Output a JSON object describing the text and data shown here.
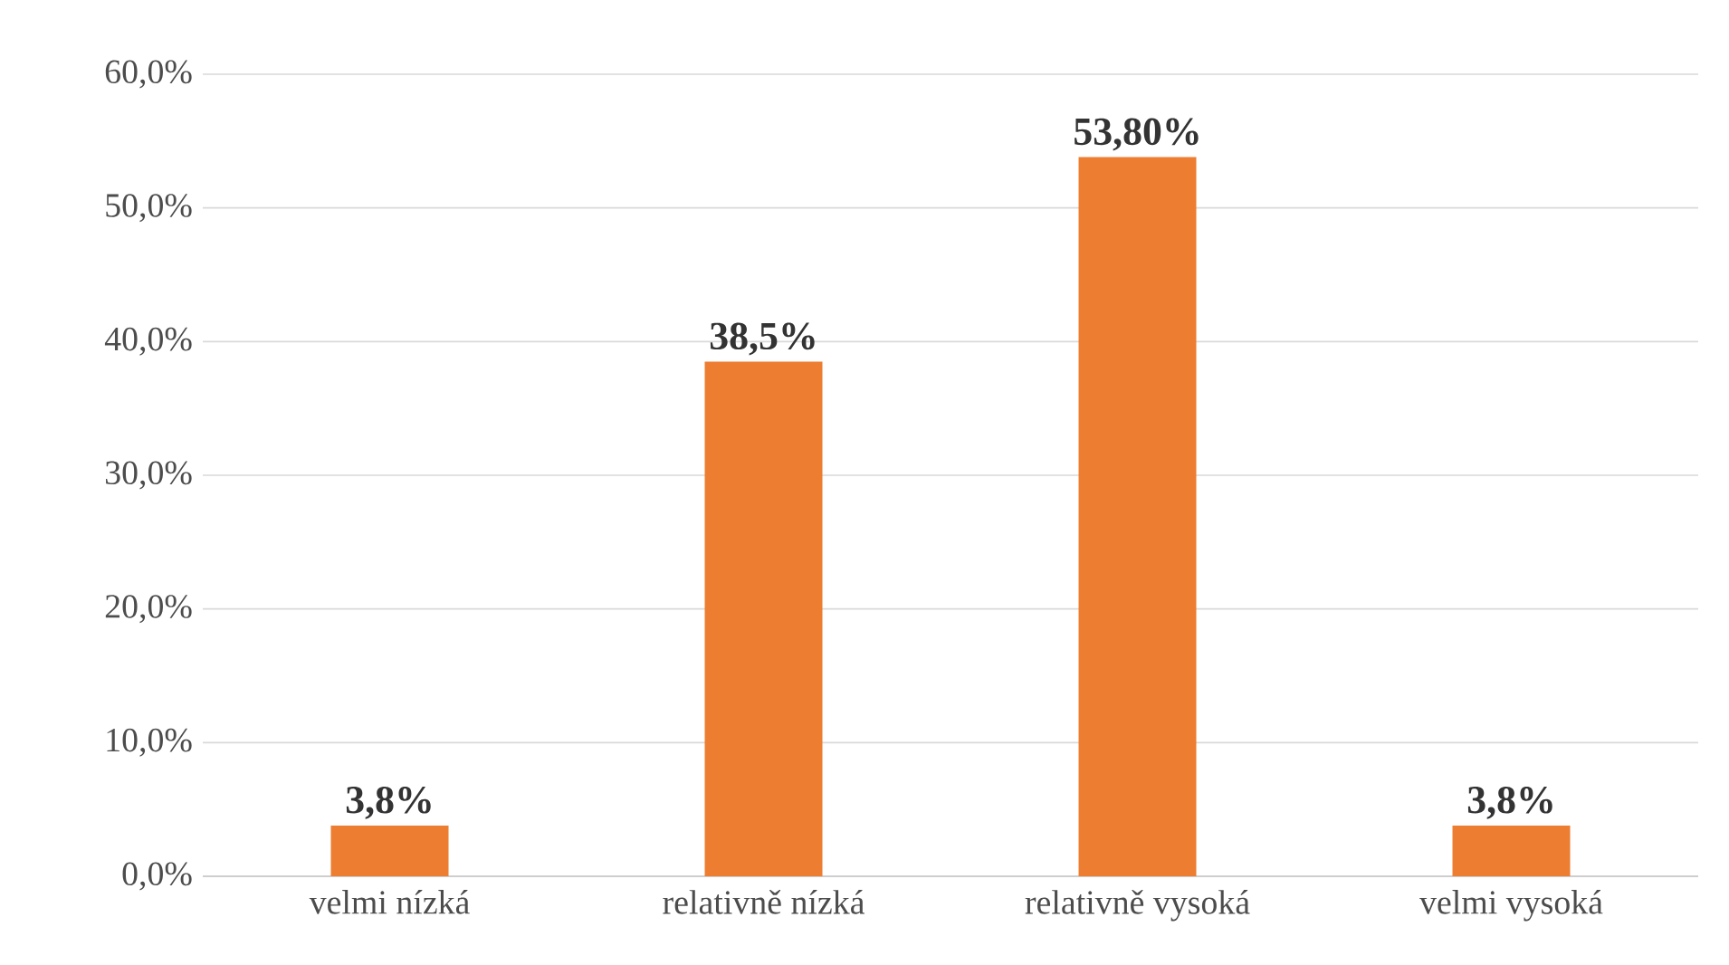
{
  "chart_data": {
    "type": "bar",
    "categories": [
      "velmi nízká",
      "relativně nízká",
      "relativně vysoká",
      "velmi vysoká"
    ],
    "values": [
      3.8,
      38.5,
      53.8,
      3.8
    ],
    "value_labels": [
      "3,8%",
      "38,5%",
      "53,80%",
      "3,8%"
    ],
    "color": "#ed7d31",
    "ylim": [
      0,
      60
    ],
    "yticks": [
      {
        "value": 0,
        "label": "0,0%"
      },
      {
        "value": 10,
        "label": "10,0%"
      },
      {
        "value": 20,
        "label": "20,0%"
      },
      {
        "value": 30,
        "label": "30,0%"
      },
      {
        "value": 40,
        "label": "40,0%"
      },
      {
        "value": 50,
        "label": "50,0%"
      },
      {
        "value": 60,
        "label": "60,0%"
      }
    ],
    "grid": "y"
  }
}
